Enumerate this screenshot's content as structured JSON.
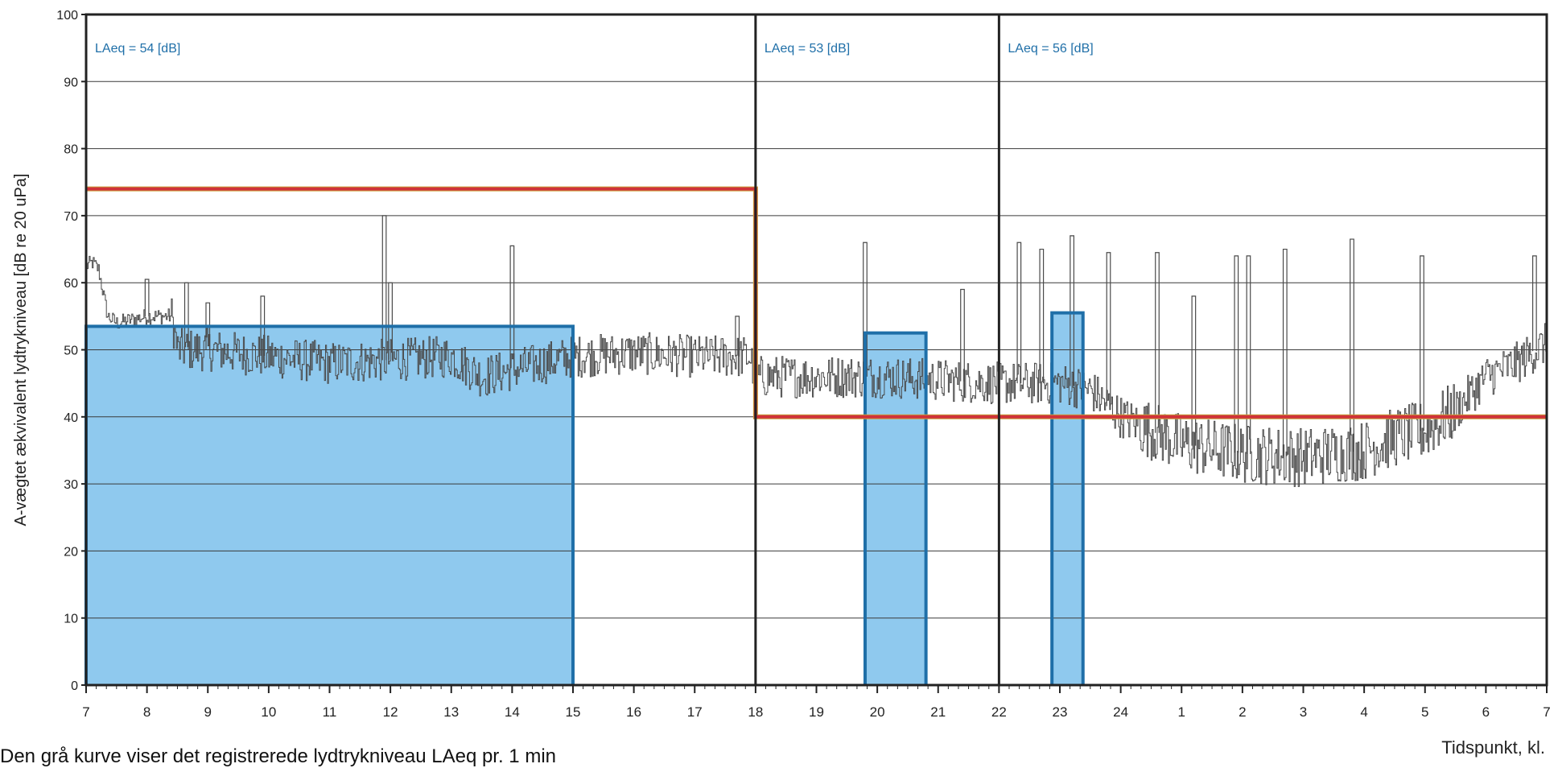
{
  "chart_data": {
    "type": "line",
    "ylabel": "A-vægtet ækvivalent lydtrykniveau [dB re 20 uPa]",
    "xlabel": "Tidspunkt, kl.",
    "ylim": [
      0,
      100
    ],
    "yticks": [
      "0",
      "10",
      "20",
      "30",
      "40",
      "50",
      "60",
      "70",
      "80",
      "90",
      "100"
    ],
    "xticks": [
      "7",
      "8",
      "9",
      "10",
      "11",
      "12",
      "13",
      "14",
      "15",
      "16",
      "17",
      "18",
      "19",
      "20",
      "21",
      "22",
      "23",
      "24",
      "1",
      "2",
      "3",
      "4",
      "5",
      "6",
      "7"
    ],
    "grid": true,
    "periods": [
      {
        "start_hour": 7,
        "end_hour": 18,
        "label": "LAeq = 54 [dB]",
        "limit": 74
      },
      {
        "start_hour": 18,
        "end_hour": 22,
        "label": "LAeq = 53 [dB]",
        "limit": 40
      },
      {
        "start_hour": 22,
        "end_hour": 31,
        "label": "LAeq = 56 [dB]",
        "limit": 40
      }
    ],
    "laeq_blocks": [
      {
        "start_hour": 7.0,
        "end_hour": 15.0,
        "value": 53.5
      },
      {
        "start_hour": 19.8,
        "end_hour": 20.8,
        "value": 52.5
      },
      {
        "start_hour": 22.87,
        "end_hour": 23.38,
        "value": 55.5
      }
    ],
    "series": [
      {
        "type": "line",
        "description_points_hour_db": [
          [
            7.0,
            62.5
          ],
          [
            7.1,
            63
          ],
          [
            7.2,
            62
          ],
          [
            7.35,
            55
          ],
          [
            7.5,
            54
          ],
          [
            8.0,
            55
          ],
          [
            8.4,
            55
          ],
          [
            8.5,
            50
          ],
          [
            9.0,
            50
          ],
          [
            10.0,
            49
          ],
          [
            11.0,
            48
          ],
          [
            12.0,
            48.5
          ],
          [
            13.0,
            49
          ],
          [
            13.5,
            46
          ],
          [
            14.0,
            47
          ],
          [
            15.0,
            49
          ],
          [
            16.0,
            49.5
          ],
          [
            17.0,
            49
          ],
          [
            17.9,
            49
          ],
          [
            18.0,
            46
          ],
          [
            19.0,
            46
          ],
          [
            20.0,
            46
          ],
          [
            21.0,
            45.5
          ],
          [
            22.0,
            45
          ],
          [
            23.0,
            45
          ],
          [
            23.5,
            44
          ],
          [
            24.0,
            40
          ],
          [
            25.0,
            36
          ],
          [
            26.0,
            34.5
          ],
          [
            27.0,
            34
          ],
          [
            28.0,
            35
          ],
          [
            28.5,
            37
          ],
          [
            29.0,
            38
          ],
          [
            29.5,
            41
          ],
          [
            30.0,
            46
          ],
          [
            30.5,
            48
          ],
          [
            31.0,
            51
          ]
        ],
        "spikes_hour_db": [
          [
            8.0,
            60.5
          ],
          [
            8.65,
            60
          ],
          [
            9.0,
            57
          ],
          [
            9.9,
            58
          ],
          [
            11.9,
            70
          ],
          [
            12.0,
            60
          ],
          [
            14.0,
            65.5
          ],
          [
            17.7,
            55
          ],
          [
            19.8,
            66
          ],
          [
            21.4,
            59
          ],
          [
            22.33,
            66
          ],
          [
            22.7,
            65
          ],
          [
            23.2,
            67
          ],
          [
            23.8,
            64.5
          ],
          [
            24.6,
            64.5
          ],
          [
            25.2,
            58
          ],
          [
            25.9,
            64
          ],
          [
            26.1,
            64
          ],
          [
            26.7,
            65
          ],
          [
            27.8,
            66.5
          ],
          [
            28.95,
            64
          ],
          [
            30.8,
            64
          ]
        ]
      }
    ],
    "colors": {
      "laeq_fill": "#8fc9ee",
      "laeq_outline": "#1f6fa8",
      "limit_line": "#d0323a",
      "trace": "#4a4a4a",
      "period_label": "#1f6fa8"
    }
  },
  "caption": "Den grå kurve viser det registrerede lydtrykniveau LAeq pr. 1 min"
}
